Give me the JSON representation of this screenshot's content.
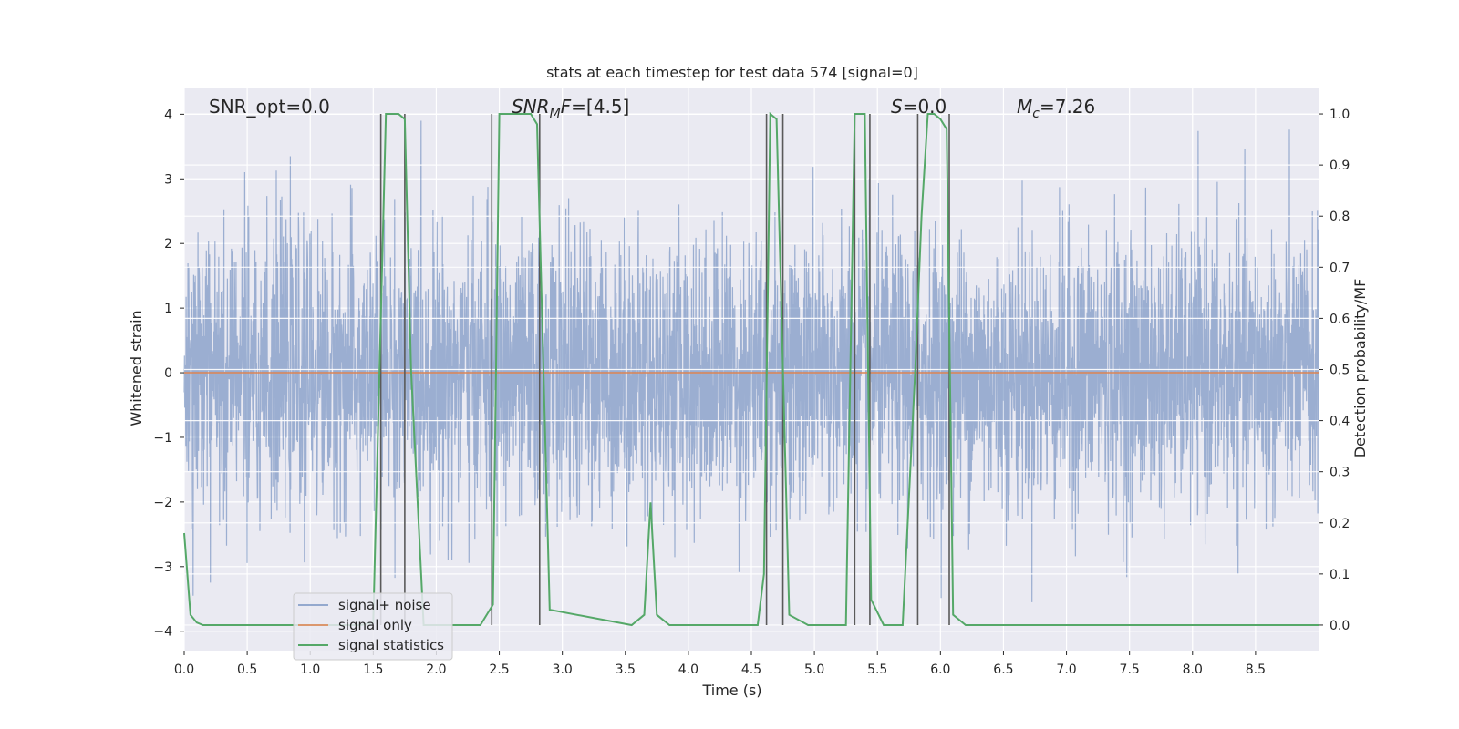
{
  "chart_data": {
    "type": "line",
    "title": "stats at each timestep for test data 574 [signal=0]",
    "xlabel": "Time (s)",
    "ylabel_left": "Whitened strain",
    "ylabel_right": "Detection probability/MF",
    "xlim": [
      0.0,
      9.0
    ],
    "ylim_left": [
      -4.3,
      4.4
    ],
    "ylim_right": [
      -0.05,
      1.05
    ],
    "x_ticks": [
      "0.0",
      "0.5",
      "1.0",
      "1.5",
      "2.0",
      "2.5",
      "3.0",
      "3.5",
      "4.0",
      "4.5",
      "5.0",
      "5.5",
      "6.0",
      "6.5",
      "7.0",
      "7.5",
      "8.0",
      "8.5"
    ],
    "y_left_ticks": [
      "4",
      "3",
      "2",
      "1",
      "0",
      "−1",
      "−2",
      "−3",
      "−4"
    ],
    "y_right_ticks": [
      "1.0",
      "0.9",
      "0.8",
      "0.7",
      "0.6",
      "0.5",
      "0.4",
      "0.3",
      "0.2",
      "0.1",
      "0.0"
    ],
    "grid": true,
    "legend_position": "lower-left",
    "annotations": {
      "snr_opt": "SNR_opt=0.0",
      "snr_mf_italic": "SNR",
      "snr_mf_sub": "M",
      "snr_mf_italic2": "F",
      "snr_mf_value": "=[4.5]",
      "s_italic": "S",
      "s_value": "=0.0",
      "mc_italic": "M",
      "mc_sub": "c",
      "mc_value": "=7.26"
    },
    "colors": {
      "noise": "#4c72b0",
      "signal": "#dd8452",
      "stats": "#55a868",
      "vlines": "#5a5a5a",
      "plot_bg": "#eaeaf2"
    },
    "series": [
      {
        "name": "signal+ noise",
        "axis": "left",
        "description_only_amplitude_envelope": [
          2.4,
          -3.6
        ]
      },
      {
        "name": "signal only",
        "axis": "left",
        "x": [
          0.0,
          9.0
        ],
        "y": [
          0.0,
          0.0
        ]
      },
      {
        "name": "signal statistics",
        "axis": "right",
        "x": [
          0.0,
          0.05,
          0.1,
          0.15,
          1.4,
          1.5,
          1.55,
          1.6,
          1.7,
          1.75,
          1.8,
          1.9,
          2.35,
          2.45,
          2.5,
          2.75,
          2.8,
          2.9,
          3.55,
          3.65,
          3.7,
          3.75,
          3.85,
          4.55,
          4.6,
          4.65,
          4.7,
          4.8,
          4.95,
          5.25,
          5.32,
          5.4,
          5.45,
          5.55,
          5.7,
          5.8,
          5.85,
          5.9,
          5.95,
          6.0,
          6.05,
          6.1,
          6.2,
          9.0
        ],
        "y": [
          0.18,
          0.02,
          0.005,
          0.0,
          0.0,
          0.005,
          0.5,
          1.0,
          1.0,
          0.99,
          0.5,
          0.0,
          0.0,
          0.04,
          1.0,
          1.0,
          0.98,
          0.03,
          0.0,
          0.02,
          0.24,
          0.02,
          0.0,
          0.0,
          0.1,
          1.0,
          0.99,
          0.02,
          0.0,
          0.0,
          1.0,
          1.0,
          0.05,
          0.0,
          0.0,
          0.5,
          0.8,
          1.0,
          1.0,
          0.99,
          0.97,
          0.02,
          0.0,
          0.0
        ]
      }
    ],
    "vertical_lines_x": [
      1.56,
      1.75,
      2.44,
      2.82,
      4.62,
      4.75,
      5.32,
      5.44,
      5.82,
      6.07
    ]
  }
}
